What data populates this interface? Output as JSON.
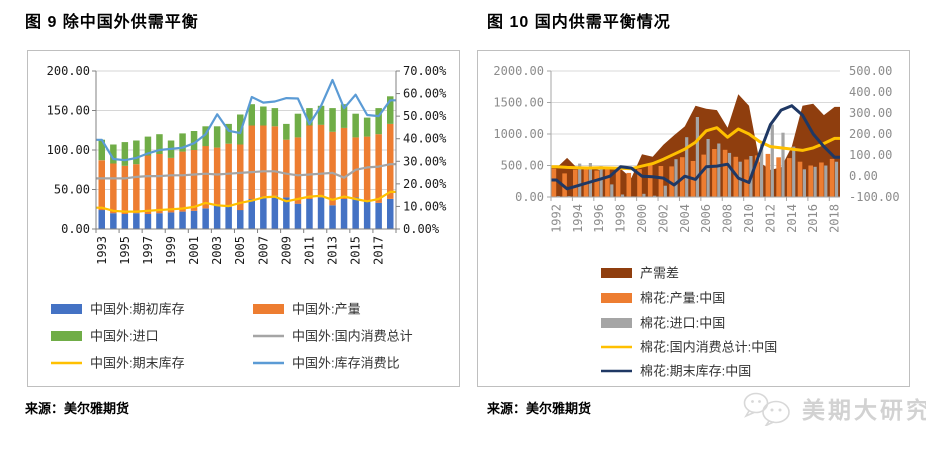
{
  "accent_colors": {
    "blue_bar": "#4472C4",
    "orange_bar": "#ED7D31",
    "green_bar": "#70AD47",
    "yellow_line": "#FFC000",
    "gray_line": "#A5A5A5",
    "light_blue_line": "#5B9BD5",
    "dark_brown_area": "#8F3E0E",
    "navy_line": "#1F3864"
  },
  "watermark": {
    "text": "美期大研究",
    "icon": "chat-bubbles-icon",
    "color": "#d2d2d2"
  },
  "chart_data": [
    {
      "type": "combo-stacked-bar-line",
      "title": "图 9 除中国外供需平衡",
      "source": "来源：美尔雅期货",
      "legend_position": "bottom",
      "grid": true,
      "x": [
        "1993",
        "1994",
        "1995",
        "1996",
        "1997",
        "1998",
        "1999",
        "2000",
        "2001",
        "2002",
        "2003",
        "2004",
        "2005",
        "2006",
        "2007",
        "2008",
        "2009",
        "2010",
        "2011",
        "2012",
        "2013",
        "2014",
        "2015",
        "2016",
        "2017",
        "2018"
      ],
      "x_tick_labels": [
        "1993",
        "1995",
        "1997",
        "1999",
        "2001",
        "2003",
        "2005",
        "2007",
        "2009",
        "2011",
        "2013",
        "2015",
        "2017"
      ],
      "left_axis": {
        "min": 0,
        "max": 200,
        "step": 50,
        "labels": [
          "0.00",
          "50.00",
          "100.00",
          "150.00",
          "200.00"
        ]
      },
      "right_axis": {
        "min": 0,
        "max": 70,
        "step": 10,
        "labels": [
          "0.00%",
          "10.00%",
          "20.00%",
          "30.00%",
          "40.00%",
          "50.00%",
          "60.00%",
          "70.00%"
        ]
      },
      "series": [
        {
          "name": "中国外:期初库存",
          "type": "bar",
          "color": "#4472C4",
          "axis": "left",
          "values": [
            24,
            20,
            19,
            20,
            19,
            20,
            21,
            22,
            23,
            26,
            30,
            28,
            24,
            38,
            41,
            42,
            40,
            32,
            38,
            40,
            30,
            38,
            40,
            35,
            33,
            38
          ]
        },
        {
          "name": "中国外:产量",
          "type": "bar",
          "color": "#ED7D31",
          "axis": "left",
          "values": [
            63,
            63,
            61,
            62,
            74,
            75,
            69,
            76,
            77,
            79,
            73,
            80,
            83,
            93,
            90,
            88,
            73,
            84,
            93,
            92,
            93,
            90,
            76,
            82,
            87,
            95
          ]
        },
        {
          "name": "中国外:进口",
          "type": "bar",
          "color": "#70AD47",
          "axis": "left",
          "values": [
            26,
            24,
            30,
            30,
            24,
            25,
            22,
            23,
            24,
            25,
            27,
            25,
            38,
            27,
            24,
            23,
            20,
            30,
            22,
            24,
            30,
            30,
            30,
            24,
            33,
            35
          ]
        },
        {
          "name": "中国外:期末库存",
          "type": "line",
          "color": "#FFC000",
          "axis": "left",
          "values": [
            27,
            23,
            22,
            22,
            23,
            24,
            25,
            26,
            28,
            33,
            30,
            29,
            33,
            36,
            40,
            41,
            35,
            38,
            41,
            42,
            37,
            41,
            38,
            35,
            38,
            47
          ]
        },
        {
          "name": "中国外:国内消费总计",
          "type": "line",
          "color": "#A5A5A5",
          "axis": "left",
          "values": [
            64,
            64,
            64,
            66,
            67,
            67,
            68,
            68,
            69,
            70,
            69,
            70,
            71,
            72,
            73,
            73,
            70,
            68,
            69,
            70,
            71,
            65,
            75,
            78,
            79,
            82
          ]
        },
        {
          "name": "中国外:库存消费比",
          "type": "line",
          "color": "#5B9BD5",
          "axis": "right",
          "values": [
            39.5,
            31,
            30.5,
            31.5,
            33.5,
            35,
            35.5,
            36,
            38,
            42,
            50.8,
            43.5,
            42.5,
            58.5,
            56,
            56.5,
            58,
            57.8,
            46.5,
            54.5,
            66,
            53.5,
            59.5,
            50.5,
            50,
            57
          ]
        }
      ]
    },
    {
      "type": "combo-area-clustered-bar-line",
      "title": "图 10 国内供需平衡情况",
      "source": "来源：美尔雅期货",
      "legend_position": "bottom",
      "grid": true,
      "x": [
        "1992",
        "1993",
        "1994",
        "1995",
        "1996",
        "1997",
        "1998",
        "1999",
        "2000",
        "2001",
        "2002",
        "2003",
        "2004",
        "2005",
        "2006",
        "2007",
        "2008",
        "2009",
        "2010",
        "2011",
        "2012",
        "2013",
        "2014",
        "2015",
        "2016",
        "2017",
        "2018"
      ],
      "x_tick_labels": [
        "1992",
        "1994",
        "1996",
        "1998",
        "2000",
        "2002",
        "2004",
        "2006",
        "2008",
        "2010",
        "2012",
        "2014",
        "2016",
        "2018"
      ],
      "left_axis": {
        "min": 0,
        "max": 2000,
        "step": 500,
        "labels": [
          "0.00",
          "500.00",
          "1000.00",
          "1500.00",
          "2000.00"
        ]
      },
      "right_axis": {
        "min": -100,
        "max": 500,
        "step": 100,
        "labels": [
          "-100.00",
          "0.00",
          "100.00",
          "200.00",
          "300.00",
          "400.00",
          "500.00"
        ]
      },
      "series": [
        {
          "name": "产需差",
          "type": "area",
          "color": "#8F3E0E",
          "axis": "left",
          "values": [
            460,
            620,
            450,
            480,
            430,
            465,
            450,
            300,
            680,
            640,
            830,
            980,
            1120,
            1450,
            1400,
            1380,
            1100,
            1630,
            1450,
            550,
            430,
            470,
            800,
            1450,
            1480,
            1300,
            1430
          ]
        },
        {
          "name": "棉花:产量:中国",
          "type": "bar",
          "color": "#ED7D31",
          "axis": "left",
          "values": [
            450,
            374,
            434,
            477,
            420,
            460,
            450,
            383,
            442,
            532,
            492,
            486,
            632,
            571,
            673,
            762,
            749,
            638,
            596,
            660,
            684,
            630,
            618,
            560,
            500,
            548,
            604
          ]
        },
        {
          "name": "棉花:进口:中国",
          "type": "bar",
          "color": "#A5A5A5",
          "axis": "left",
          "values": [
            15,
            15,
            530,
            540,
            490,
            200,
            40,
            10,
            50,
            20,
            180,
            600,
            950,
            1270,
            920,
            850,
            700,
            560,
            650,
            840,
            1150,
            1020,
            800,
            440,
            480,
            500,
            560
          ]
        },
        {
          "name": "棉花:国内消费总计:中国",
          "type": "line",
          "color": "#FFC000",
          "axis": "left",
          "values": [
            480,
            470,
            465,
            460,
            465,
            460,
            455,
            450,
            490,
            530,
            600,
            680,
            760,
            870,
            1050,
            1100,
            950,
            1080,
            1000,
            880,
            800,
            780,
            760,
            740,
            780,
            850,
            930
          ]
        },
        {
          "name": "棉花:期末库存:中国",
          "type": "line",
          "color": "#1F3864",
          "axis": "left",
          "values": [
            270,
            130,
            180,
            230,
            280,
            330,
            480,
            460,
            330,
            320,
            300,
            190,
            330,
            280,
            480,
            490,
            520,
            300,
            230,
            700,
            1150,
            1380,
            1450,
            1300,
            1000,
            800,
            630
          ]
        }
      ]
    }
  ]
}
